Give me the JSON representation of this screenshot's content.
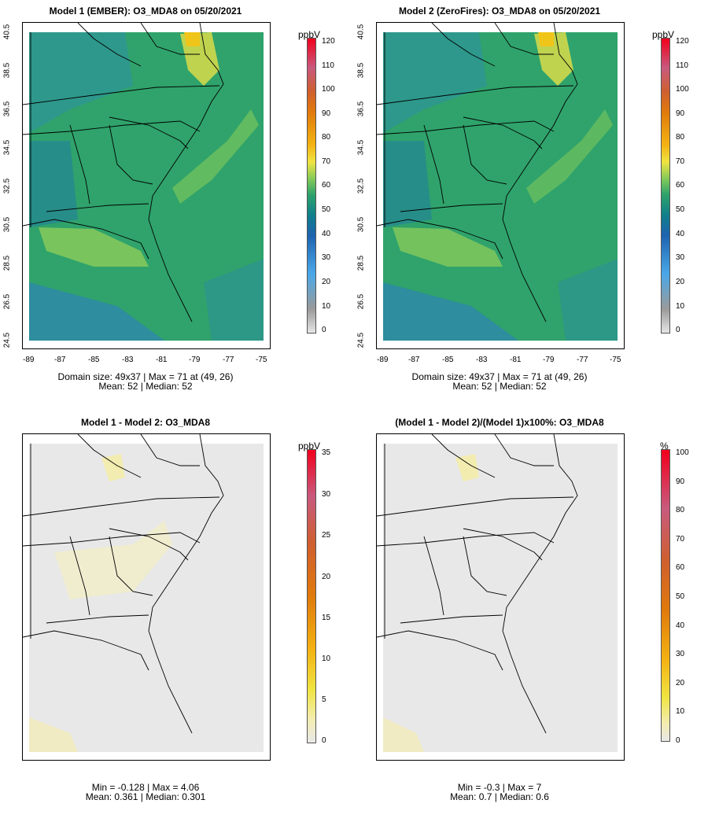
{
  "colors": {
    "scale": [
      "#e6e6e6",
      "#9a9a9a",
      "#4aa8e8",
      "#1e63b0",
      "#0f7f8a",
      "#2fa36b",
      "#7ec85a",
      "#f0e442",
      "#f3b212",
      "#e07a0c",
      "#cf5f2f",
      "#c85a7e",
      "#d96c96",
      "#f2001c"
    ],
    "diff_scale": [
      "#e8e8e8",
      "#f3ecb0",
      "#f0e442",
      "#f3b212",
      "#e07a0c",
      "#cf5f2f",
      "#c85a7e",
      "#f2001c"
    ],
    "land_line": "#000000"
  },
  "panels": [
    {
      "id": "p1",
      "title": "Model 1 (EMBER): O3_MDA8 on 05/20/2021",
      "stats_line1": "Domain size: 49x37 | Max = 71 at (49, 26)",
      "stats_line2": "Mean: 52 |  Median: 52",
      "unit": "ppbV",
      "colorbar_labels": [
        "120",
        "110",
        "100",
        "90",
        "80",
        "70",
        "60",
        "50",
        "40",
        "30",
        "20",
        "10",
        "0"
      ],
      "x_ticks": [
        "-89",
        "-87",
        "-85",
        "-83",
        "-81",
        "-79",
        "-77",
        "-75"
      ],
      "y_ticks": [
        "40.5",
        "38.5",
        "36.5",
        "34.5",
        "32.5",
        "30.5",
        "28.5",
        "26.5",
        "24.5"
      ]
    },
    {
      "id": "p2",
      "title": "Model 2 (ZeroFires): O3_MDA8 on 05/20/2021",
      "stats_line1": "Domain size: 49x37 | Max = 71 at (49, 26)",
      "stats_line2": "Mean: 52 |  Median: 52",
      "unit": "ppbV",
      "colorbar_labels": [
        "120",
        "110",
        "100",
        "90",
        "80",
        "70",
        "60",
        "50",
        "40",
        "30",
        "20",
        "10",
        "0"
      ],
      "x_ticks": [
        "-89",
        "-87",
        "-85",
        "-83",
        "-81",
        "-79",
        "-77",
        "-75"
      ],
      "y_ticks": [
        "40.5",
        "38.5",
        "36.5",
        "34.5",
        "32.5",
        "30.5",
        "28.5",
        "26.5",
        "24.5"
      ]
    },
    {
      "id": "p3",
      "title": "Model 1 - Model 2: O3_MDA8",
      "stats_line1": "Min = -0.128 | Max = 4.06",
      "stats_line2": "Mean: 0.361 |  Median: 0.301",
      "unit": "ppbV",
      "colorbar_labels": [
        "35",
        "30",
        "25",
        "20",
        "15",
        "10",
        "5",
        "0"
      ]
    },
    {
      "id": "p4",
      "title": "(Model 1 - Model 2)/(Model 1)x100%: O3_MDA8",
      "stats_line1": "Min = -0.3 | Max = 7",
      "stats_line2": "Mean: 0.7 |  Median: 0.6",
      "unit": "%",
      "colorbar_labels": [
        "100",
        "90",
        "80",
        "70",
        "60",
        "50",
        "40",
        "30",
        "20",
        "10",
        "0"
      ]
    }
  ]
}
